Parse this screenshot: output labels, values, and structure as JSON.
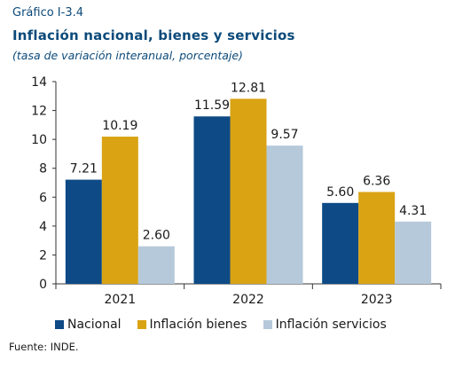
{
  "header": {
    "label": "Gráfico I-3.4",
    "title": "Inflación nacional, bienes y servicios",
    "subtitle": "(tasa de variación interanual, porcentaje)"
  },
  "source": "Fuente: INDE.",
  "chart_data": {
    "type": "bar",
    "title": "Inflación nacional, bienes y servicios",
    "subtitle": "(tasa de variación interanual, porcentaje)",
    "categories": [
      "2021",
      "2022",
      "2023"
    ],
    "series": [
      {
        "name": "Nacional",
        "values": [
          7.21,
          11.59,
          5.6
        ],
        "labels": [
          "7.21",
          "11.59",
          "5.60"
        ],
        "color": "#0d4a86"
      },
      {
        "name": "Inflación bienes",
        "values": [
          10.19,
          12.81,
          6.36
        ],
        "labels": [
          "10.19",
          "12.81",
          "6.36"
        ],
        "color": "#d9a313"
      },
      {
        "name": "Inflación servicios",
        "values": [
          2.6,
          9.57,
          4.31
        ],
        "labels": [
          "2.60",
          "9.57",
          "4.31"
        ],
        "color": "#b6c9db"
      }
    ],
    "ylim": [
      0,
      14
    ],
    "yticks": [
      "0",
      "2",
      "4",
      "6",
      "8",
      "10",
      "12",
      "14"
    ],
    "grid": false,
    "legend_position": "bottom"
  }
}
